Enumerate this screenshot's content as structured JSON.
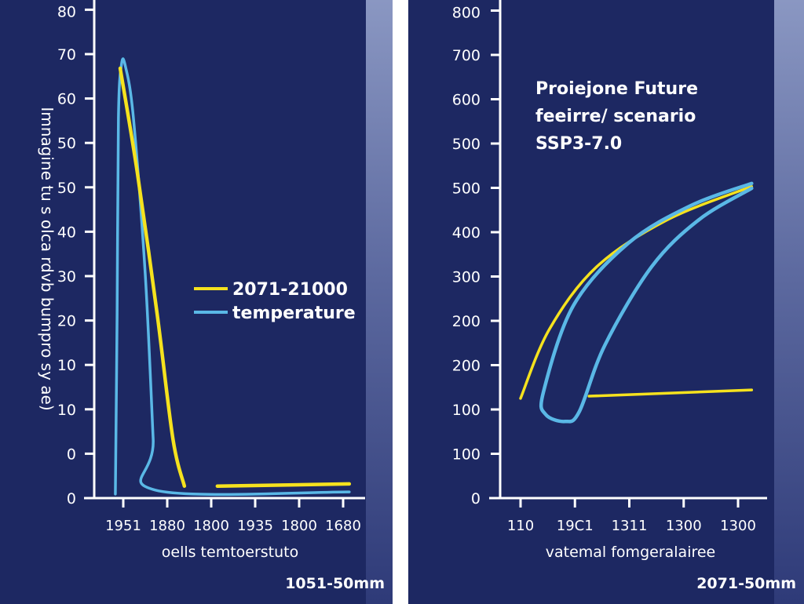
{
  "colors": {
    "background": "#1d2862",
    "series_yellow": "#f5e21e",
    "series_blue": "#5ab8e6",
    "axis": "#ffffff"
  },
  "chart_data": [
    {
      "type": "line",
      "ylabel": "Imnagine tu s olca rdvb bumpro sy ae)",
      "xlabel": "oells temtoerstuto",
      "footnote": "1051-50mm",
      "y_tick_labels": [
        "0",
        "0",
        "10",
        "10",
        "20",
        "30",
        "40",
        "50",
        "50",
        "60",
        "70",
        "80"
      ],
      "x_tick_labels": [
        "1951",
        "1880",
        "1800",
        "1935",
        "1800",
        "1680"
      ],
      "units": "tick index",
      "legend": {
        "position": "middle-right",
        "entries": [
          {
            "label": "2071-21000",
            "color": "#f5e21e"
          },
          {
            "label": "temperature",
            "color": "#5ab8e6"
          }
        ]
      },
      "series": [
        {
          "color": "#5ab8e6",
          "segments": [
            [
              [
                -0.18,
                0.09
              ],
              [
                -0.14,
                4.15
              ],
              [
                -0.11,
                8.57
              ],
              [
                -0.04,
                9.77
              ],
              [
                0.05,
                9.72
              ],
              [
                0.23,
                8.57
              ],
              [
                0.5,
                5.04
              ],
              [
                0.68,
                1.33
              ],
              [
                0.73,
                0.18
              ],
              [
                5.14,
                0.14
              ]
            ]
          ]
        },
        {
          "color": "#f5e21e",
          "segments": [
            [
              [
                -0.07,
                9.68
              ],
              [
                0.32,
                7.33
              ],
              [
                0.77,
                4.15
              ],
              [
                1.13,
                1.33
              ],
              [
                1.39,
                0.27
              ]
            ],
            [
              [
                2.14,
                0.27
              ],
              [
                5.14,
                0.32
              ]
            ]
          ]
        }
      ]
    },
    {
      "type": "line",
      "title": [
        "Proiejone Future",
        "feeirre/ scenario",
        "SSP3-7.0"
      ],
      "xlabel": "vatemal fomgeralairee",
      "footnote": "2071-50mm",
      "y_tick_labels": [
        "0",
        "100",
        "100",
        "200",
        "200",
        "300",
        "400",
        "500",
        "500",
        "600",
        "700",
        "800"
      ],
      "x_tick_labels": [
        "110",
        "19C1",
        "1311",
        "1300",
        "1300"
      ],
      "units": "tick index",
      "series": [
        {
          "color": "#f5e21e",
          "segments": [
            [
              [
                0,
                2.25
              ],
              [
                0.53,
                3.81
              ],
              [
                1.4,
                5.22
              ],
              [
                2.7,
                6.28
              ],
              [
                4.25,
                7.03
              ]
            ],
            [
              [
                1.26,
                2.3
              ],
              [
                4.25,
                2.44
              ]
            ]
          ]
        },
        {
          "color": "#5ab8e6",
          "segments": [
            [
              [
                4.25,
                7.1
              ],
              [
                3.13,
                6.6
              ],
              [
                1.98,
                5.75
              ],
              [
                0.97,
                4.34
              ],
              [
                0.42,
                2.39
              ],
              [
                0.46,
                1.89
              ],
              [
                0.82,
                1.73
              ],
              [
                1.08,
                1.95
              ],
              [
                1.55,
                3.45
              ],
              [
                2.41,
                5.22
              ],
              [
                3.28,
                6.28
              ],
              [
                4.25,
                6.99
              ]
            ]
          ]
        }
      ]
    }
  ]
}
